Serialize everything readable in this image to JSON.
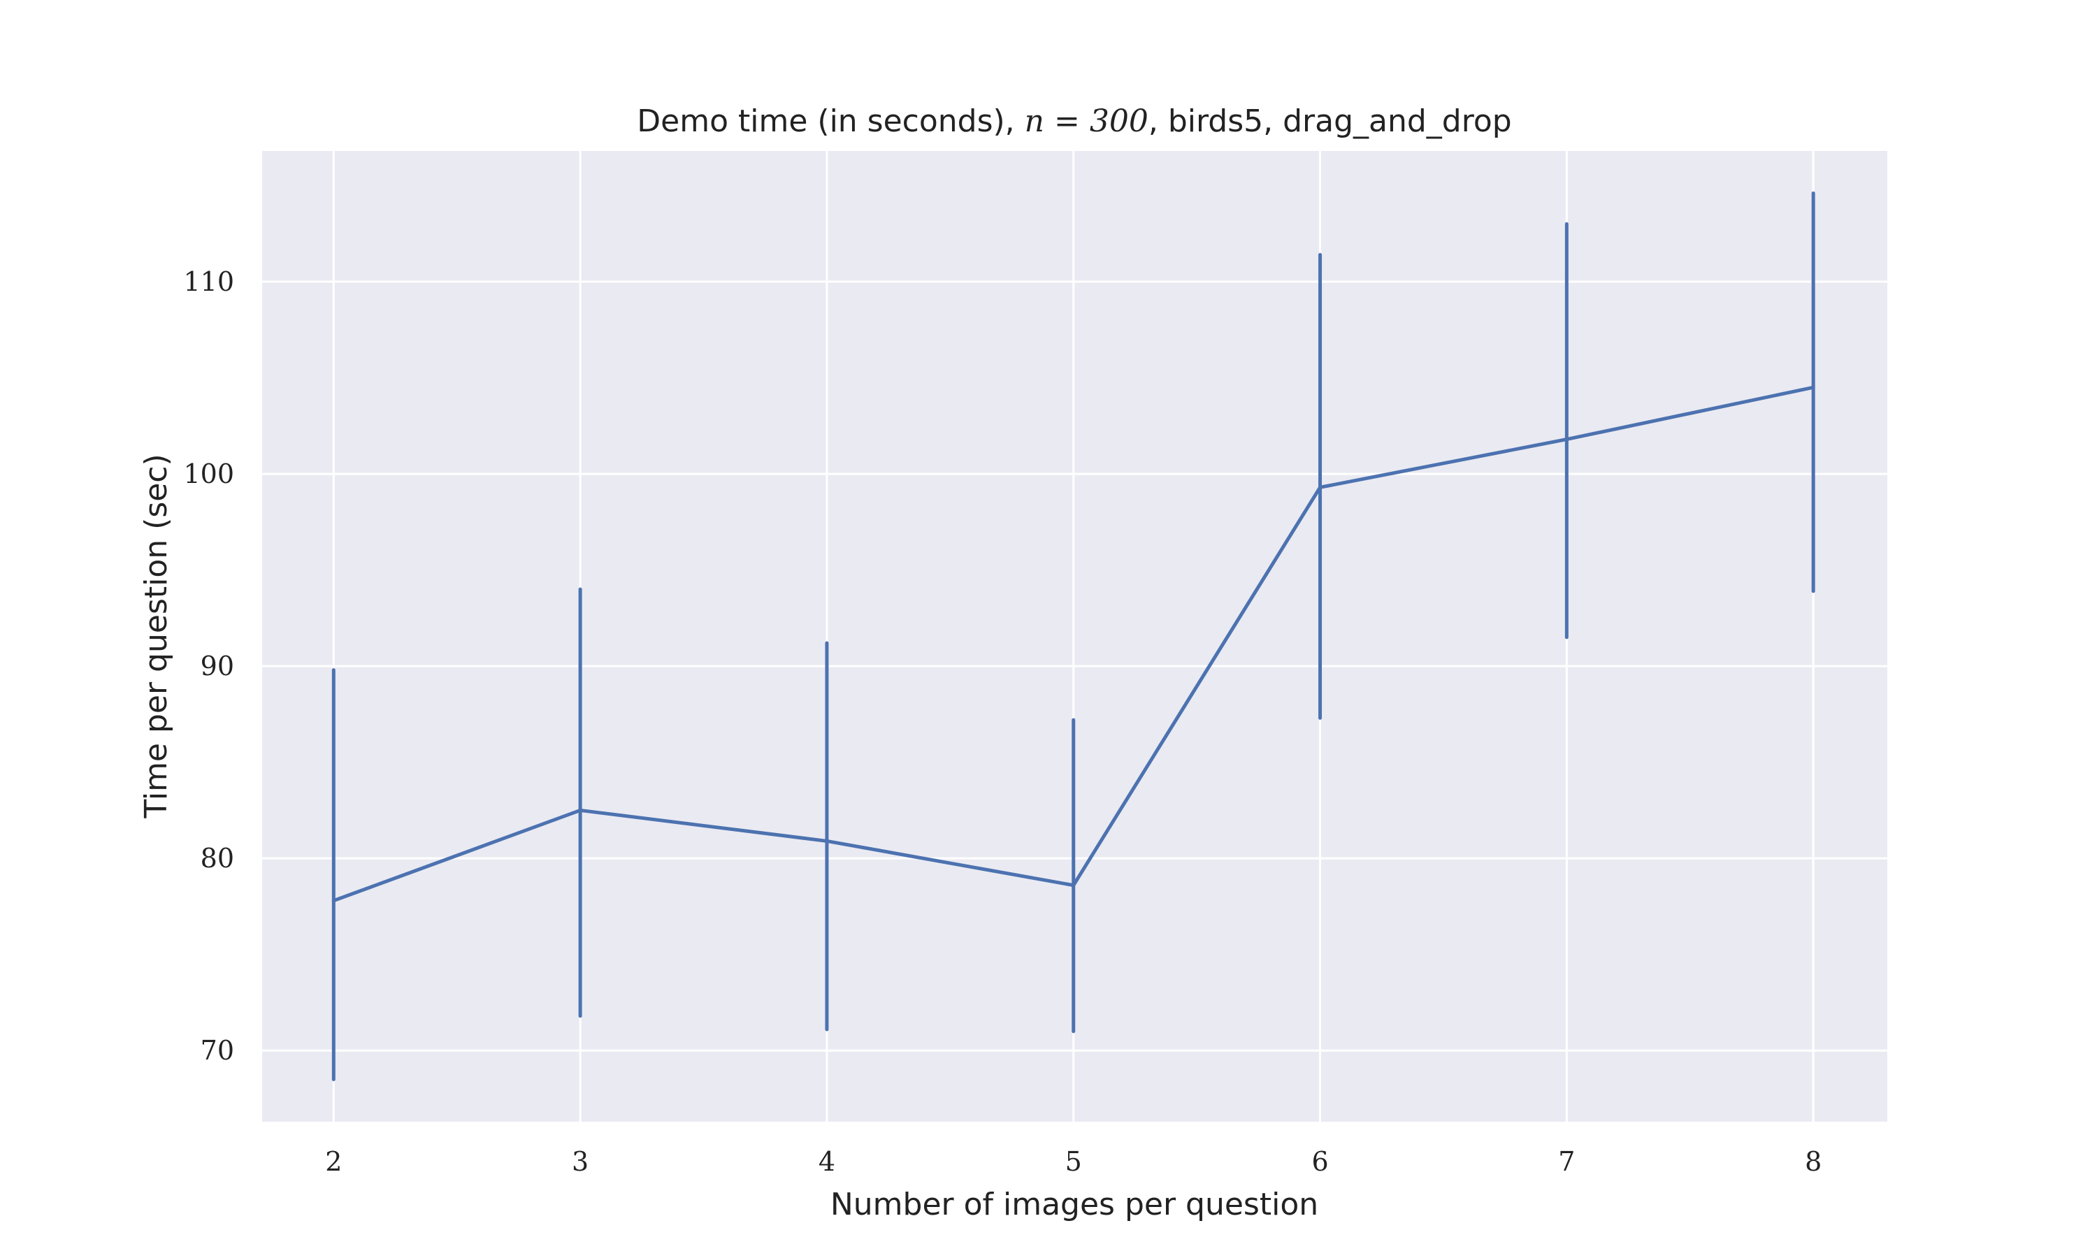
{
  "chart_data": {
    "type": "line",
    "title_prefix": "Demo time (in seconds), ",
    "title_math": "n = 300",
    "title_suffix": ", birds5, drag_and_drop",
    "xlabel": "Number of images per question",
    "ylabel": "Time per question (sec)",
    "xlim": [
      1.71,
      8.3
    ],
    "ylim": [
      66.3,
      116.8
    ],
    "xticks": [
      2,
      3,
      4,
      5,
      6,
      7,
      8
    ],
    "yticks": [
      70,
      80,
      90,
      100,
      110
    ],
    "grid": true,
    "legend": "none",
    "series": [
      {
        "x": [
          2,
          3,
          4,
          5,
          6,
          7,
          8
        ],
        "values": [
          77.8,
          82.5,
          80.9,
          78.6,
          99.3,
          101.8,
          104.5
        ],
        "error_low": [
          68.5,
          71.8,
          71.1,
          71.0,
          87.3,
          91.5,
          93.9
        ],
        "error_high": [
          89.8,
          94.0,
          91.2,
          87.2,
          111.4,
          113.0,
          114.6
        ],
        "color": "#4c72b0"
      }
    ]
  }
}
